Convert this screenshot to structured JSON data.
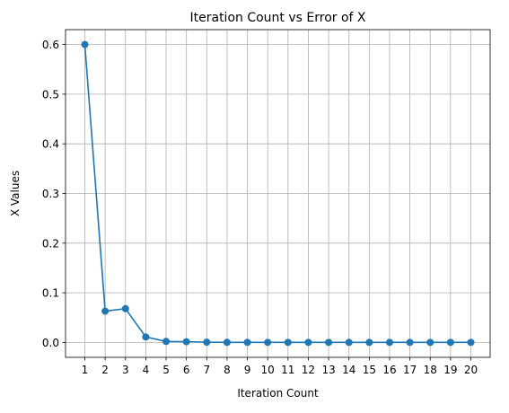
{
  "chart_data": {
    "type": "line",
    "title": "Iteration Count vs Error of X",
    "xlabel": "Iteration Count",
    "ylabel": "X Values",
    "x": [
      1,
      2,
      3,
      4,
      5,
      6,
      7,
      8,
      9,
      10,
      11,
      12,
      13,
      14,
      15,
      16,
      17,
      18,
      19,
      20
    ],
    "series": [
      {
        "values": [
          0.6,
          0.063,
          0.068,
          0.011,
          0.002,
          0.0015,
          0.0005,
          0.0002,
          0.0001,
          0.0001,
          0.0001,
          0.0001,
          0.0001,
          0.0001,
          0.0001,
          0.0001,
          0.0001,
          0.0001,
          0.0001,
          0.0001
        ],
        "color": "#1f77b4",
        "marker": "circle"
      }
    ],
    "xticks": [
      "1",
      "2",
      "3",
      "4",
      "5",
      "6",
      "7",
      "8",
      "9",
      "10",
      "11",
      "12",
      "13",
      "14",
      "15",
      "16",
      "17",
      "18",
      "19",
      "20"
    ],
    "yticks": [
      "0.0",
      "0.1",
      "0.2",
      "0.3",
      "0.4",
      "0.5",
      "0.6"
    ],
    "ytick_values": [
      0,
      0.1,
      0.2,
      0.3,
      0.4,
      0.5,
      0.6
    ],
    "xlim": [
      0.05,
      20.95
    ],
    "ylim": [
      -0.03,
      0.63
    ],
    "grid": true,
    "colors": {
      "grid": "#b0b0b0",
      "axes": "#000000",
      "line": "#1f77b4"
    }
  }
}
